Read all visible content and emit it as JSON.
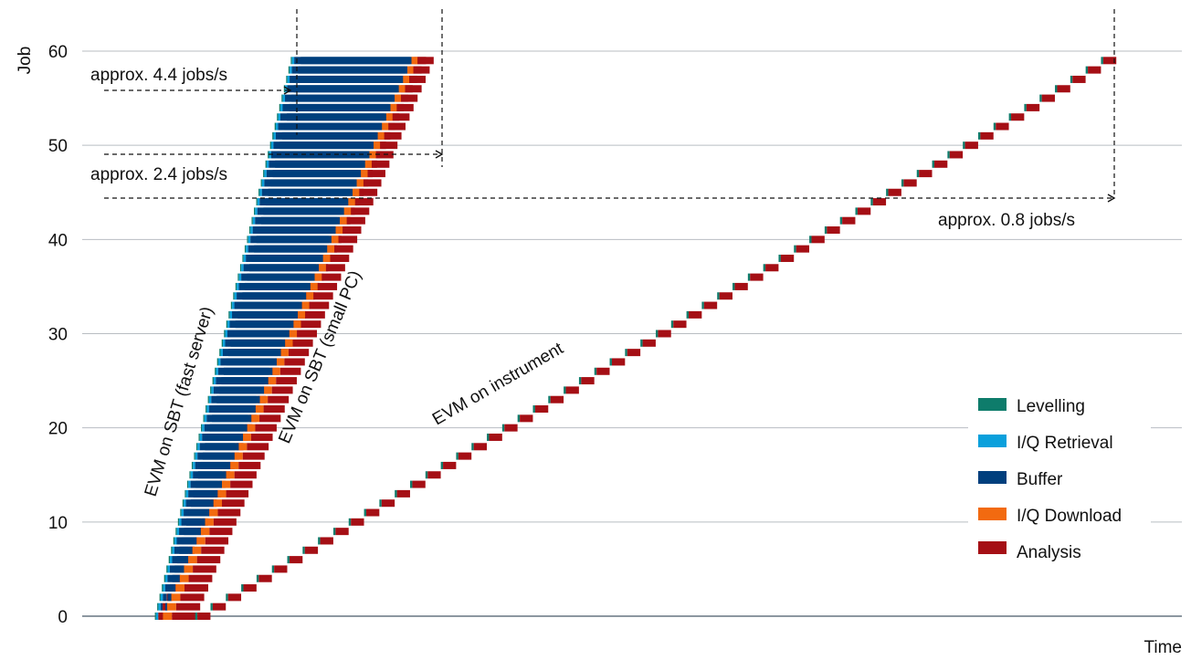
{
  "chart_data": {
    "type": "bar",
    "subtype": "gantt-timeline",
    "title": "",
    "ylabel": "Job",
    "xlabel": "Time",
    "ylim": [
      0,
      60
    ],
    "yticks": [
      "0",
      "10",
      "20",
      "30",
      "40",
      "50",
      "60"
    ],
    "x_units": "arbitrary time units (0-100, no printed scale)",
    "grid": true,
    "legend_position": "bottom-right",
    "stages": [
      {
        "key": "levelling",
        "name": "Levelling",
        "color": "#0E7C6B"
      },
      {
        "key": "iq_retrieval",
        "name": "I/Q Retrieval",
        "color": "#0AA0DC"
      },
      {
        "key": "buffer",
        "name": "Buffer",
        "color": "#003F7D"
      },
      {
        "key": "iq_download",
        "name": "I/Q Download",
        "color": "#F26A10"
      },
      {
        "key": "analysis",
        "name": "Analysis",
        "color": "#A50F15"
      }
    ],
    "series": [
      {
        "name": "EVM on SBT (fast server)",
        "jobs": 60,
        "first_job_start": 4.5,
        "last_job_start": 18.0,
        "stage_durations_start": {
          "levelling": 0.12,
          "iq_retrieval": 0.22,
          "buffer": 0.0,
          "iq_download": 0.0,
          "analysis": 0.5
        },
        "stage_durations_end": {
          "levelling": 0.12,
          "iq_retrieval": 0.22,
          "buffer": 11.5,
          "iq_download": 0.4,
          "analysis": 1.2
        }
      },
      {
        "name": "EVM on SBT (small PC)",
        "jobs": 60,
        "first_job_start": 5.3,
        "last_job_start": 19.0,
        "stage_durations_start": {
          "levelling": 0.0,
          "iq_retrieval": 0.0,
          "buffer": 0.0,
          "iq_download": 0.9,
          "analysis": 2.4
        },
        "stage_durations_end": {
          "levelling": 0.0,
          "iq_retrieval": 0.0,
          "buffer": 11.0,
          "iq_download": 0.6,
          "analysis": 1.6
        }
      },
      {
        "name": "EVM on instrument",
        "jobs": 60,
        "first_job_start": 8.5,
        "last_job_start": 98.5,
        "stage_durations": {
          "levelling": 0.22,
          "iq_retrieval": 0.0,
          "buffer": 0.0,
          "iq_download": 0.0,
          "analysis": 1.3
        }
      }
    ],
    "annotations": [
      {
        "text": "approx. 4.4 jobs/s",
        "job": 56
      },
      {
        "text": "approx. 2.4 jobs/s",
        "job": 49
      },
      {
        "text": "approx. 0.8 jobs/s",
        "job": 44.5
      }
    ],
    "series_labels": [
      {
        "text": "EVM on SBT (fast server)"
      },
      {
        "text": "EVM on SBT (small PC)"
      },
      {
        "text": "EVM on instrument"
      }
    ]
  }
}
